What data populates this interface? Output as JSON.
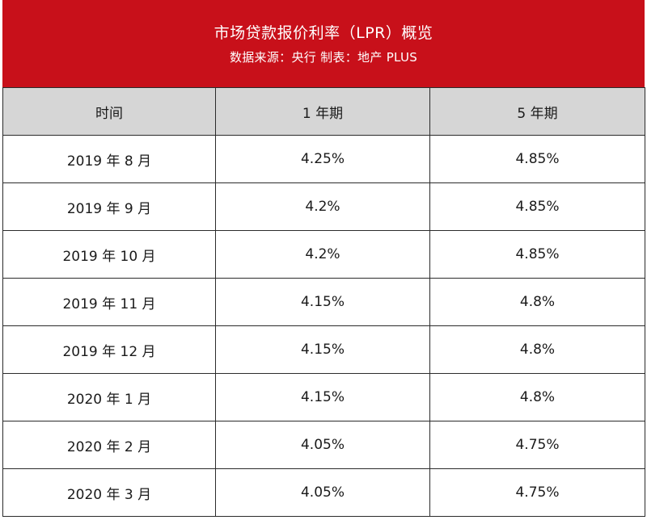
{
  "header": {
    "title": "市场贷款报价利率（LPR）概览",
    "subtitle": "数据来源：央行 制表：地产 PLUS"
  },
  "colors": {
    "header_bg": "#c8101a",
    "header_text": "#ffffff",
    "column_header_bg": "#d6d6d6",
    "grid": "#2b2b2b"
  },
  "chart_data": {
    "type": "table",
    "title": "市场贷款报价利率（LPR）概览",
    "subtitle": "数据来源：央行 制表：地产 PLUS",
    "columns": [
      "时间",
      "1 年期",
      "5 年期"
    ],
    "rows": [
      [
        "2019 年 8 月",
        "4.25%",
        "4.85%"
      ],
      [
        "2019 年 9 月",
        "4.2%",
        "4.85%"
      ],
      [
        "2019 年 10 月",
        "4.2%",
        "4.85%"
      ],
      [
        "2019 年 11 月",
        "4.15%",
        "4.8%"
      ],
      [
        "2019 年 12 月",
        "4.15%",
        "4.8%"
      ],
      [
        "2020 年 1 月",
        "4.15%",
        "4.8%"
      ],
      [
        "2020 年 2 月",
        "4.05%",
        "4.75%"
      ],
      [
        "2020 年 3 月",
        "4.05%",
        "4.75%"
      ]
    ],
    "series": [
      {
        "name": "1 年期",
        "values": [
          4.25,
          4.2,
          4.2,
          4.15,
          4.15,
          4.15,
          4.05,
          4.05
        ]
      },
      {
        "name": "5 年期",
        "values": [
          4.85,
          4.85,
          4.85,
          4.8,
          4.8,
          4.8,
          4.75,
          4.75
        ]
      }
    ],
    "categories": [
      "2019 年 8 月",
      "2019 年 9 月",
      "2019 年 10 月",
      "2019 年 11 月",
      "2019 年 12 月",
      "2020 年 1 月",
      "2020 年 2 月",
      "2020 年 3 月"
    ]
  }
}
